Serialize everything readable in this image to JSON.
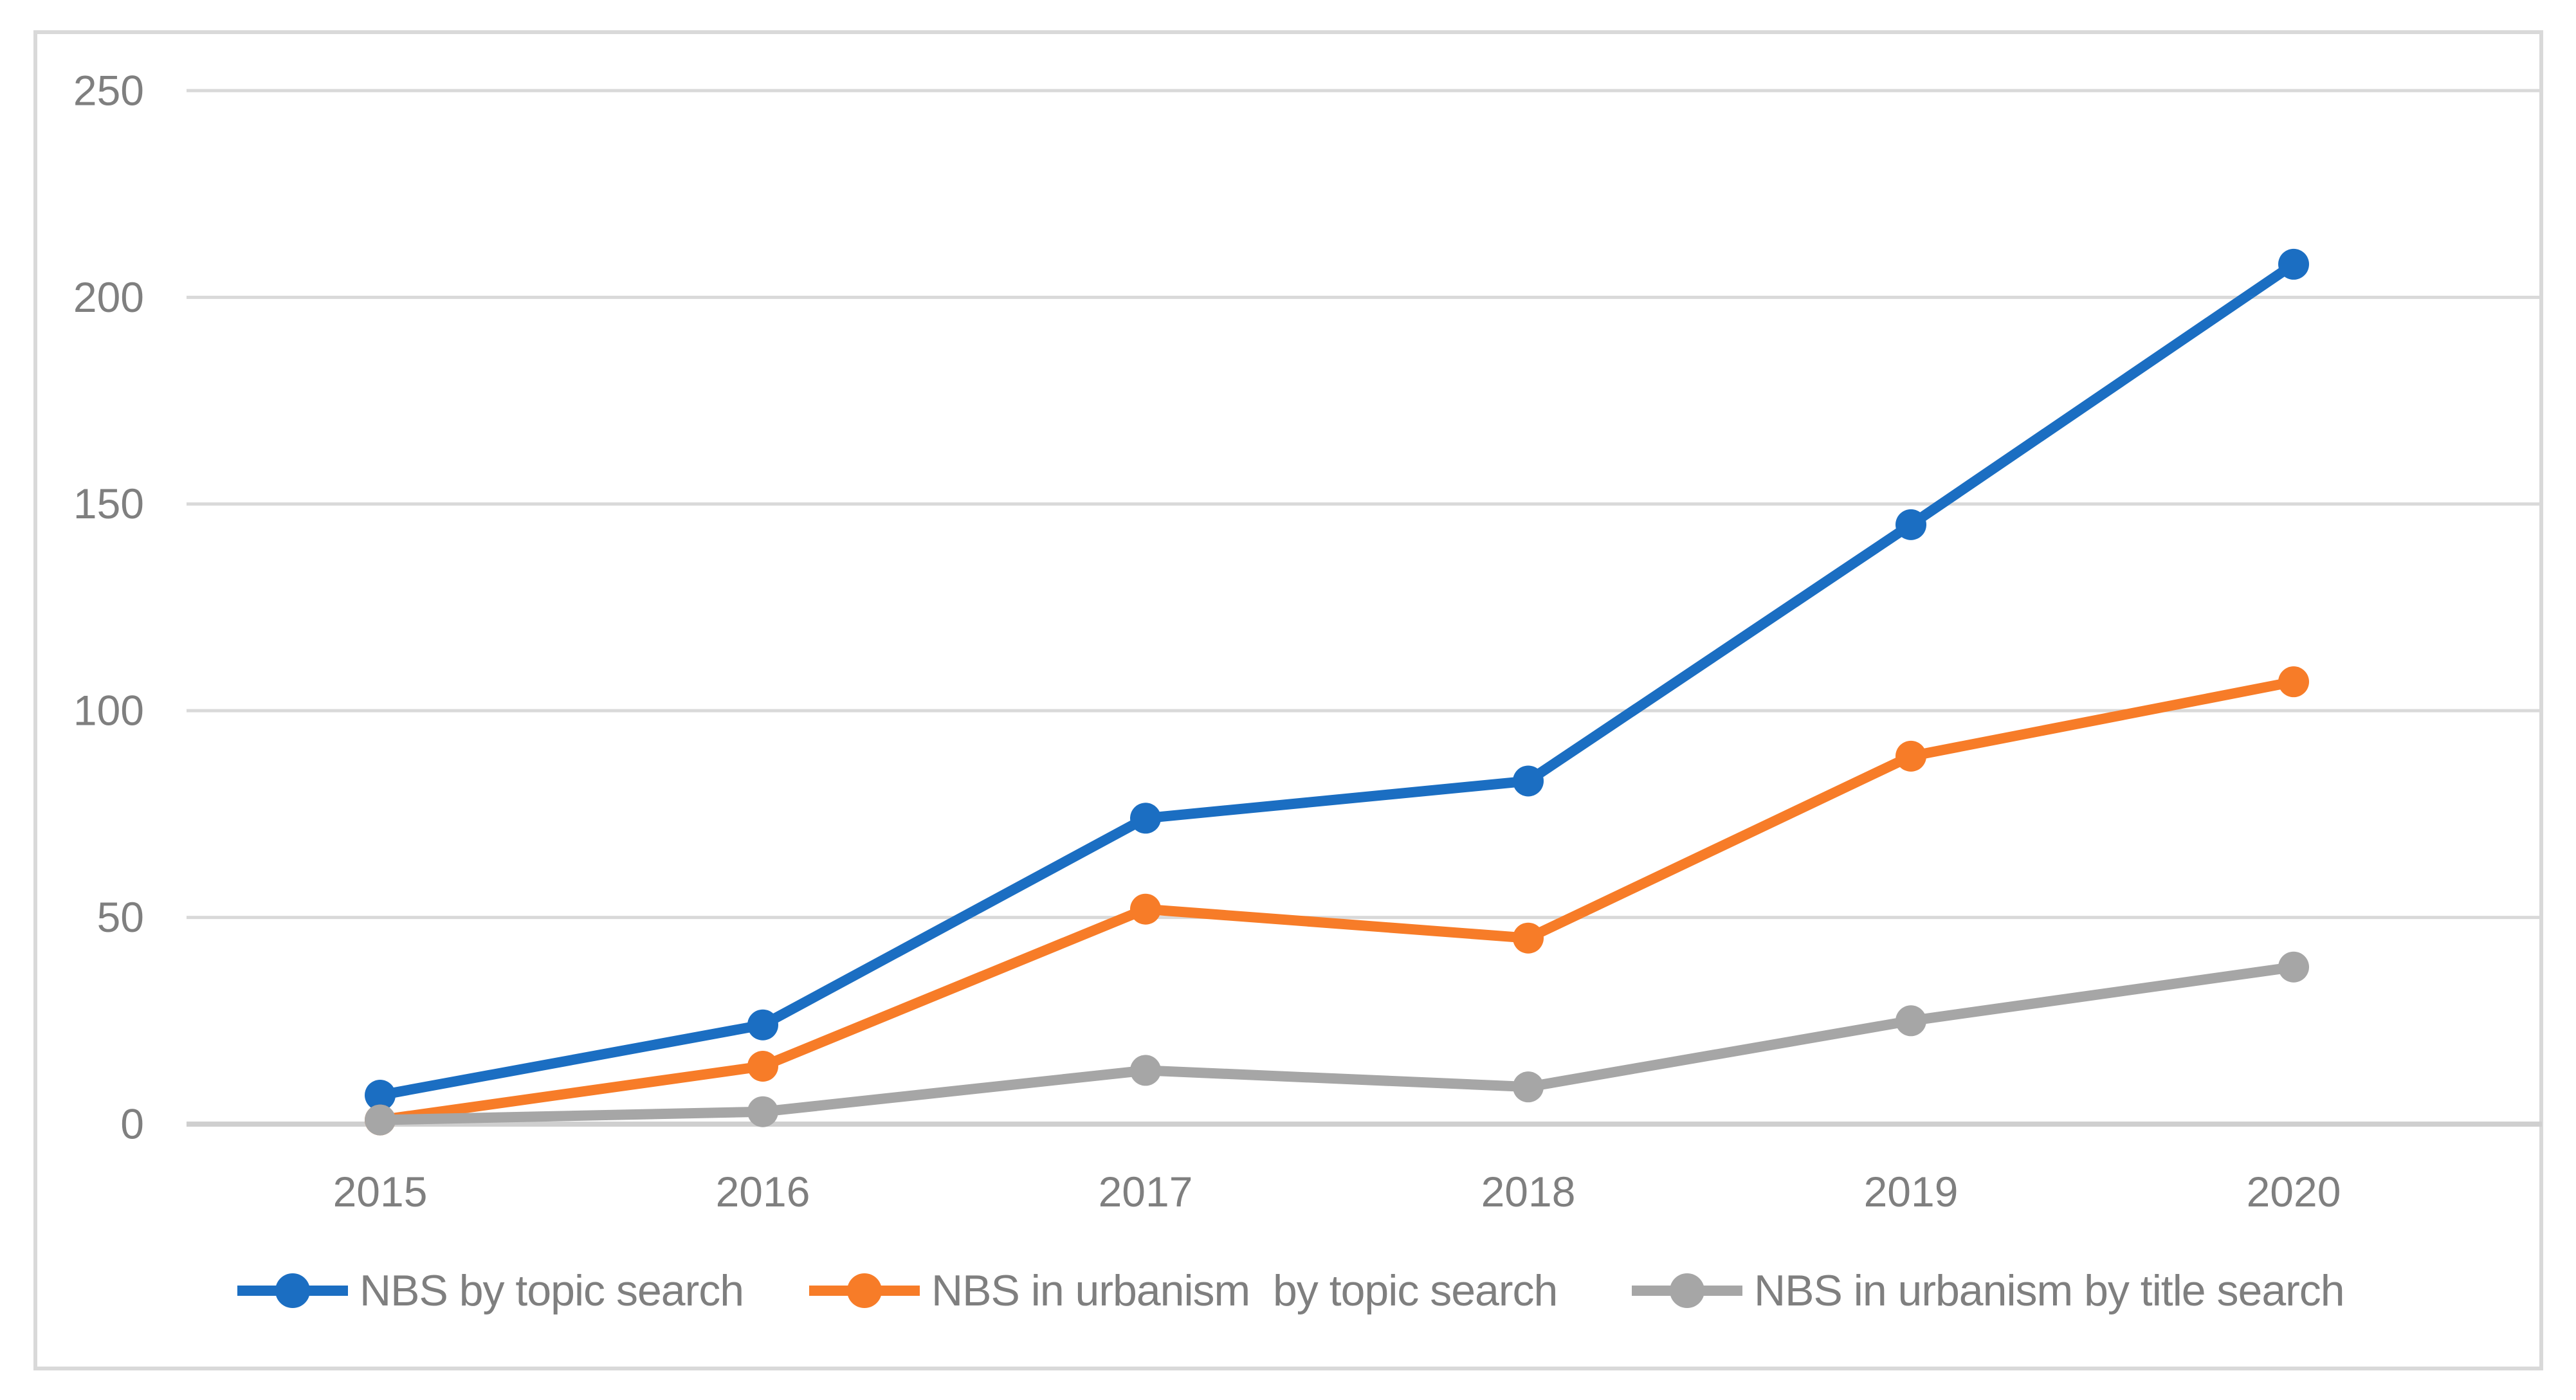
{
  "figure": {
    "background_color": "#FFFFFF",
    "border_color": "#D9D9D9",
    "gridline_color": "#D9D9D9",
    "axis_line_color": "#CFCFCF",
    "tick_label_color": "#7F7F7F"
  },
  "chart_data": {
    "type": "line",
    "title": "",
    "xlabel": "",
    "ylabel": "",
    "categories": [
      "2015",
      "2016",
      "2017",
      "2018",
      "2019",
      "2020"
    ],
    "series": [
      {
        "name": "NBS by topic search",
        "color": "#1B6EC2",
        "values": [
          7,
          24,
          74,
          83,
          145,
          208
        ]
      },
      {
        "name": "NBS in urbanism  by topic search",
        "color": "#F77C28",
        "values": [
          1,
          14,
          52,
          45,
          89,
          107
        ]
      },
      {
        "name": "NBS in urbanism by title search",
        "color": "#A6A6A6",
        "values": [
          1,
          3,
          13,
          9,
          25,
          38
        ]
      }
    ],
    "ylim": [
      0,
      250
    ],
    "ytick_step": 50,
    "ytick_labels": [
      "0",
      "50",
      "100",
      "150",
      "200",
      "250"
    ],
    "grid": true,
    "legend_position": "bottom",
    "marker": "circle"
  }
}
